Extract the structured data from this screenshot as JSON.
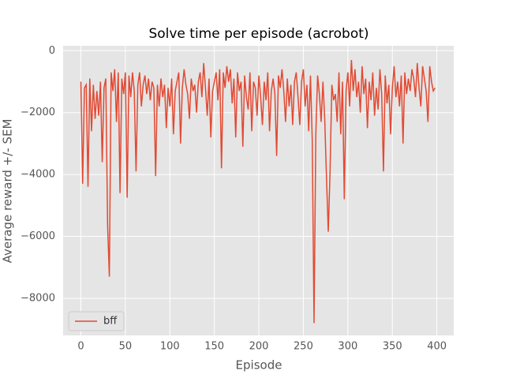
{
  "chart_data": {
    "type": "line",
    "title": "Solve time per episode (acrobot)",
    "x_label": "Episode",
    "y_label": "Average reward +/- SEM",
    "x": [
      0,
      2,
      4,
      6,
      8,
      10,
      12,
      14,
      16,
      18,
      20,
      22,
      24,
      26,
      28,
      30,
      32,
      34,
      36,
      38,
      40,
      42,
      44,
      46,
      48,
      50,
      52,
      54,
      56,
      58,
      60,
      62,
      64,
      66,
      68,
      70,
      72,
      74,
      76,
      78,
      80,
      82,
      84,
      86,
      88,
      90,
      92,
      94,
      96,
      98,
      100,
      102,
      104,
      106,
      108,
      110,
      112,
      114,
      116,
      118,
      120,
      122,
      124,
      126,
      128,
      130,
      132,
      134,
      136,
      138,
      140,
      142,
      144,
      146,
      148,
      150,
      152,
      154,
      156,
      158,
      160,
      162,
      164,
      166,
      168,
      170,
      172,
      174,
      176,
      178,
      180,
      182,
      184,
      186,
      188,
      190,
      192,
      194,
      196,
      198,
      200,
      202,
      204,
      206,
      208,
      210,
      212,
      214,
      216,
      218,
      220,
      222,
      224,
      226,
      228,
      230,
      232,
      234,
      236,
      238,
      240,
      242,
      244,
      246,
      248,
      250,
      252,
      254,
      256,
      258,
      260,
      262,
      264,
      266,
      268,
      270,
      272,
      274,
      276,
      278,
      280,
      282,
      284,
      286,
      288,
      290,
      292,
      294,
      296,
      298,
      300,
      302,
      304,
      306,
      308,
      310,
      312,
      314,
      316,
      318,
      320,
      322,
      324,
      326,
      328,
      330,
      332,
      334,
      336,
      338,
      340,
      342,
      344,
      346,
      348,
      350,
      352,
      354,
      356,
      358,
      360,
      362,
      364,
      366,
      368,
      370,
      372,
      374,
      376,
      378,
      380,
      382,
      384,
      386,
      388,
      390,
      392,
      394,
      396,
      398
    ],
    "series": [
      {
        "name": "bff",
        "color": "#e24a33",
        "values": [
          -1000,
          -4300,
          -1200,
          -1100,
          -4400,
          -900,
          -2600,
          -1100,
          -2200,
          -1300,
          -2100,
          -1000,
          -3600,
          -1200,
          -900,
          -5600,
          -7300,
          -700,
          -1300,
          -600,
          -2300,
          -700,
          -4600,
          -900,
          -1400,
          -700,
          -4750,
          -800,
          -1500,
          -700,
          -1300,
          -3900,
          -1100,
          -700,
          -1800,
          -1100,
          -800,
          -1400,
          -900,
          -1600,
          -1000,
          -1200,
          -4050,
          -1100,
          -1800,
          -900,
          -1500,
          -1100,
          -2500,
          -1200,
          -1800,
          -900,
          -2700,
          -1300,
          -1000,
          -700,
          -3000,
          -1200,
          -600,
          -1100,
          -1400,
          -2200,
          -900,
          -1300,
          -1100,
          -2000,
          -1000,
          -700,
          -1500,
          -400,
          -1200,
          -2100,
          -900,
          -2800,
          -1300,
          -1000,
          -700,
          -1600,
          -600,
          -3800,
          -700,
          -1200,
          -500,
          -1000,
          -600,
          -1700,
          -900,
          -2800,
          -700,
          -1300,
          -1000,
          -3100,
          -800,
          -1500,
          -1900,
          -700,
          -2600,
          -1000,
          -1200,
          -2100,
          -800,
          -1500,
          -2400,
          -1000,
          -1600,
          -700,
          -2600,
          -1300,
          -900,
          -1400,
          -3400,
          -800,
          -1200,
          -600,
          -1300,
          -2300,
          -900,
          -1800,
          -1100,
          -2400,
          -1000,
          -700,
          -1500,
          -2400,
          -1000,
          -600,
          -1800,
          -1100,
          -2600,
          -800,
          -2900,
          -8800,
          -2700,
          -800,
          -1400,
          -2300,
          -1000,
          -2200,
          -4100,
          -5850,
          -3900,
          -1100,
          -1600,
          -1400,
          -2300,
          -700,
          -2700,
          -1000,
          -4800,
          -1300,
          -700,
          -1800,
          -300,
          -1300,
          -600,
          -1500,
          -1000,
          -2000,
          -500,
          -1400,
          -900,
          -2500,
          -1000,
          -1600,
          -700,
          -2100,
          -1200,
          -1900,
          -600,
          -1400,
          -3900,
          -800,
          -1700,
          -1100,
          -2700,
          -1200,
          -500,
          -1500,
          -1000,
          -1800,
          -800,
          -3000,
          -700,
          -1400,
          -900,
          -1300,
          -600,
          -900,
          -1500,
          -400,
          -1200,
          -1800,
          -500,
          -900,
          -1300,
          -2300,
          -500,
          -1000,
          -1300,
          -1200
        ]
      }
    ],
    "xlim": [
      -19.95,
      418.95
    ],
    "ylim": [
      -9200,
      160
    ],
    "xticks": [
      0,
      50,
      100,
      150,
      200,
      250,
      300,
      350,
      400
    ],
    "yticks": [
      0,
      {
        "value": -2000,
        "label": "−2000"
      },
      {
        "value": -4000,
        "label": "−4000"
      },
      {
        "value": -6000,
        "label": "−6000"
      },
      {
        "value": -8000,
        "label": "−8000"
      }
    ],
    "grid": true,
    "legend": "lower left"
  }
}
